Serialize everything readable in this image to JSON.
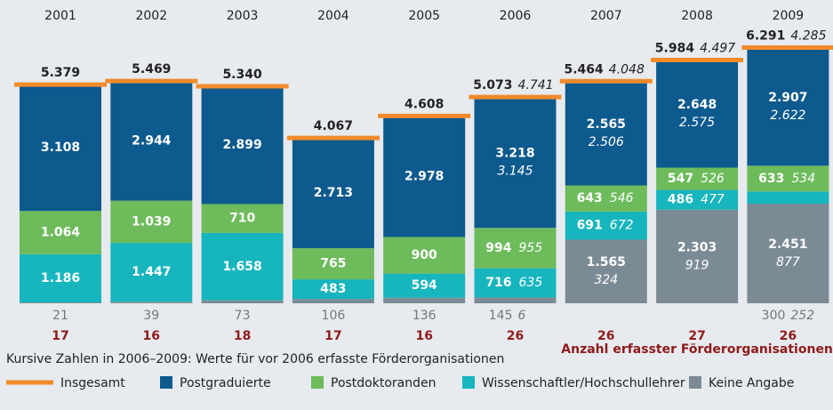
{
  "chart_data": {
    "type": "stacked-bar",
    "categories": [
      "2001",
      "2002",
      "2003",
      "2004",
      "2005",
      "2006",
      "2007",
      "2008",
      "2009"
    ],
    "series": [
      {
        "name": "Postgraduierte",
        "color": "#0d5a8e",
        "values": [
          3108,
          2944,
          2899,
          2713,
          2978,
          3218,
          2565,
          2648,
          2907
        ],
        "value_labels": [
          "3.108",
          "2.944",
          "2.899",
          "2.713",
          "2.978",
          "3.218",
          "2.565",
          "2.648",
          "2.907"
        ],
        "alt_values": [
          null,
          null,
          null,
          null,
          null,
          3145,
          2506,
          2575,
          2622
        ],
        "alt_value_labels": [
          null,
          null,
          null,
          null,
          null,
          "3.145",
          "2.506",
          "2.575",
          "2.622"
        ]
      },
      {
        "name": "Postdoktoranden",
        "color": "#6dbb5b",
        "values": [
          1064,
          1039,
          710,
          765,
          900,
          994,
          643,
          547,
          633
        ],
        "value_labels": [
          "1.064",
          "1.039",
          "710",
          "765",
          "900",
          "994",
          "643",
          "547",
          "633"
        ],
        "alt_values": [
          null,
          null,
          null,
          null,
          null,
          955,
          546,
          526,
          534
        ],
        "alt_value_labels": [
          null,
          null,
          null,
          null,
          null,
          "955",
          "546",
          "526",
          "534"
        ]
      },
      {
        "name": "Wissenschaftler/Hochschullehrer",
        "color": "#17b5bd",
        "values": [
          1186,
          1447,
          1658,
          483,
          594,
          716,
          691,
          486,
          300
        ],
        "value_labels": [
          "1.186",
          "1.447",
          "1.658",
          "483",
          "594",
          "716",
          "691",
          "486",
          "300"
        ],
        "alt_values": [
          null,
          null,
          null,
          null,
          null,
          635,
          672,
          477,
          252
        ],
        "alt_value_labels": [
          null,
          null,
          null,
          null,
          null,
          "635",
          "672",
          "477",
          "252"
        ]
      },
      {
        "name": "Keine Angabe",
        "color": "#7b8b95",
        "values": [
          21,
          39,
          73,
          106,
          136,
          145,
          1565,
          2303,
          2451
        ],
        "value_labels": [
          "21",
          "39",
          "73",
          "106",
          "136",
          "145",
          "1.565",
          "2.303",
          "2.451"
        ],
        "alt_values": [
          null,
          null,
          null,
          null,
          null,
          6,
          324,
          919,
          877
        ],
        "alt_value_labels": [
          null,
          null,
          null,
          null,
          null,
          "6",
          "324",
          "919",
          "877"
        ]
      }
    ],
    "totals": {
      "name": "Insgesamt",
      "color": "#f28b2a",
      "values": [
        5379,
        5469,
        5340,
        4067,
        4608,
        5073,
        5464,
        5984,
        6291
      ],
      "value_labels": [
        "5.379",
        "5.469",
        "5.340",
        "4.067",
        "4.608",
        "5.073",
        "5.464",
        "5.984",
        "6.291"
      ],
      "alt_values": [
        null,
        null,
        null,
        null,
        null,
        4741,
        4048,
        4497,
        4285
      ],
      "alt_value_labels": [
        null,
        null,
        null,
        null,
        null,
        "4.741",
        "4.048",
        "4.497",
        "4.285"
      ]
    },
    "counts": {
      "label": "Anzahl erfasster Förderorganisationen",
      "color": "#8e1b1b",
      "values": [
        17,
        16,
        18,
        17,
        16,
        26,
        26,
        27,
        26
      ]
    },
    "note": "Kursive Zahlen in 2006–2009: Werte für vor 2006 erfasste Förderorganisationen"
  }
}
